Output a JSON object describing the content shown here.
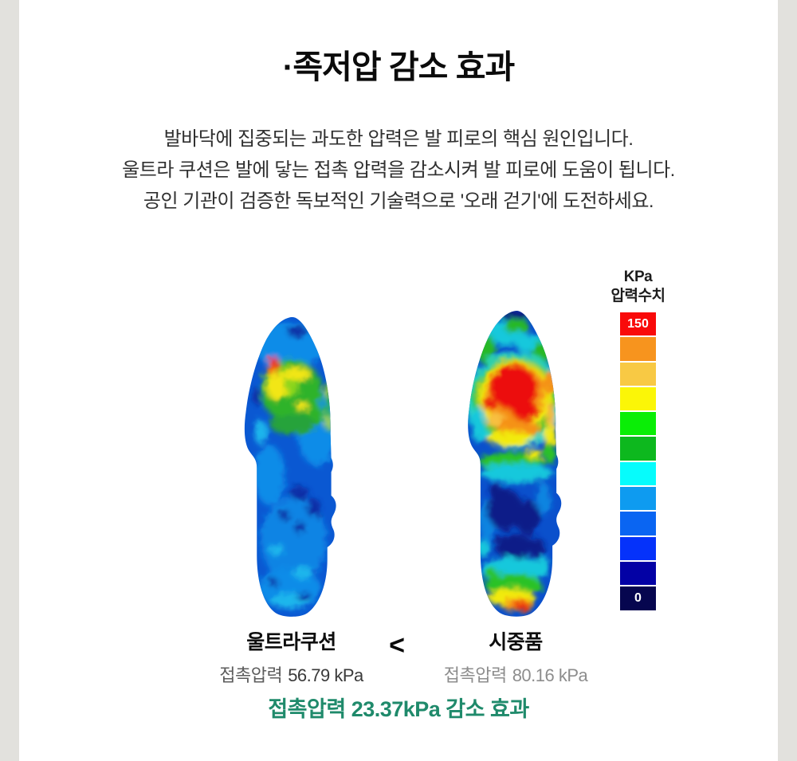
{
  "page": {
    "background": "#e2e1dd",
    "panel_background": "#ffffff"
  },
  "header": {
    "title": "·족저압 감소 효과"
  },
  "description": {
    "lines": [
      "발바닥에 집중되는 과도한 압력은 발 피로의 핵심 원인입니다.",
      "울트라 쿠션은 발에 닿는 접촉 압력을 감소시켜 발 피로에 도움이 됩니다.",
      "공인 기관이 검증한 독보적인 기술력으로 '오래 걷기'에 도전하세요."
    ]
  },
  "scale": {
    "unit_label": "KPa",
    "title": "압력수치",
    "max_label": "150",
    "min_label": "0",
    "colors": [
      "#f90a0a",
      "#f7941e",
      "#f8c944",
      "#fbf607",
      "#0aee06",
      "#0db81e",
      "#06fcfc",
      "#0e9bf0",
      "#0a65f2",
      "#0532fa",
      "#0301a5",
      "#06064f"
    ]
  },
  "comparison": {
    "left": {
      "name": "울트라쿠션",
      "pressure_label": "접촉압력",
      "value": "56.79 kPa"
    },
    "operator": "<",
    "right": {
      "name": "시중품",
      "pressure_label": "접촉압력",
      "value": "80.16 kPa"
    },
    "result": "접촉압력 23.37kPa 감소 효과",
    "result_color": "#1f8a6b"
  },
  "chart_data": {
    "type": "heatmap",
    "title": "족저압 감소 효과 (plantar pressure comparison)",
    "unit": "KPa",
    "scale_range": [
      0,
      150
    ],
    "scale_colors": [
      "#f90a0a",
      "#f7941e",
      "#f8c944",
      "#fbf607",
      "#0aee06",
      "#0db81e",
      "#06fcfc",
      "#0e9bf0",
      "#0a65f2",
      "#0532fa",
      "#0301a5",
      "#06064f"
    ],
    "series": [
      {
        "name": "울트라쿠션",
        "metric": "접촉압력",
        "value_kpa": 56.79,
        "pattern": "overall low pressure (blue/cyan); single small mid-pressure spot (green/yellow with tiny red core) at medial forefoot; small green strip at lateral forefoot edge"
      },
      {
        "name": "시중품",
        "metric": "접촉압력",
        "value_kpa": 80.16,
        "pattern": "large high-pressure red zone at forefoot ringed by orange/yellow/green/cyan; dark-blue low zone at midfoot; elevated green/yellow/orange/red arc at heel"
      }
    ],
    "difference_kpa": 23.37,
    "annotation": "접촉압력 23.37kPa 감소 효과"
  }
}
